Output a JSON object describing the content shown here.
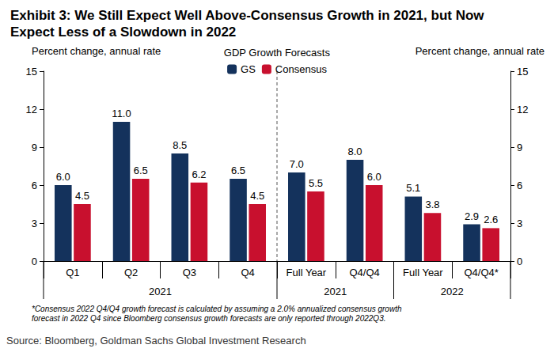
{
  "chart_data": {
    "type": "bar",
    "title": "Exhibit 3: We Still Expect Well Above-Consensus Growth in 2021, but Now Expect Less of a Slowdown in 2022",
    "legend_title": "GDP Growth Forecasts",
    "ylabel": "Percent change, annual rate",
    "y2label": "Percent change, annual rate",
    "categories": [
      "Q1",
      "Q2",
      "Q3",
      "Q4",
      "Full Year",
      "Q4/Q4",
      "Full Year",
      "Q4/Q4*"
    ],
    "groups": [
      {
        "label": "2021",
        "count": 4
      },
      {
        "label": "2021",
        "count": 2
      },
      {
        "label": "2022",
        "count": 2
      }
    ],
    "series": [
      {
        "name": "GS",
        "color": "#14325c",
        "values": [
          6.0,
          11.0,
          8.5,
          6.5,
          7.0,
          8.0,
          5.1,
          2.9
        ],
        "value_labels": [
          "6.0",
          "11.0",
          "8.5",
          "6.5",
          "7.0",
          "8.0",
          "5.1",
          "2.9"
        ]
      },
      {
        "name": "Consensus",
        "color": "#c8102e",
        "values": [
          4.5,
          6.5,
          6.2,
          4.5,
          5.5,
          6.0,
          3.8,
          2.6
        ],
        "value_labels": [
          "4.5",
          "6.5",
          "6.2",
          "4.5",
          "5.5",
          "6.0",
          "3.8",
          "2.6"
        ]
      }
    ],
    "ylim": [
      0,
      15
    ],
    "yticks": [
      0,
      3,
      6,
      9,
      12,
      15
    ],
    "y2lim": [
      0,
      15
    ],
    "y2ticks": [
      0,
      3,
      6,
      9,
      12,
      15
    ],
    "grid": false,
    "legend": "top",
    "data_labels": true,
    "footnote": "*Consensus 2022 Q4/Q4 growth forecast is calculated by assuming a 2.0% annualized consensus growth forecast in 2022 Q4 since Bloomberg consensus growth forecasts are only reported through 2022Q3.",
    "source": "Source: Bloomberg, Goldman Sachs Global Investment Research"
  }
}
